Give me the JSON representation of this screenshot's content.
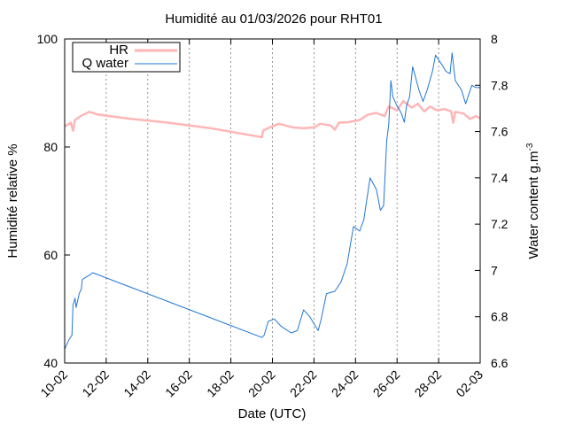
{
  "chart_data": {
    "type": "line",
    "title": "Humidité au 01/03/2026 pour RHT01",
    "xlabel": "Date (UTC)",
    "ylabel_left": "Humidité relative %",
    "ylabel_right": "Water content g.m",
    "ylabel_right_sup": "-3",
    "x_unit": "days since 10-02",
    "xlim": [
      0,
      20
    ],
    "ylim_left": [
      40,
      100
    ],
    "ylim_right": [
      6.6,
      8.0
    ],
    "x_ticks": [
      {
        "x": 0,
        "label": "10-02"
      },
      {
        "x": 2,
        "label": "12-02"
      },
      {
        "x": 4,
        "label": "14-02"
      },
      {
        "x": 6,
        "label": "16-02"
      },
      {
        "x": 8,
        "label": "18-02"
      },
      {
        "x": 10,
        "label": "20-02"
      },
      {
        "x": 12,
        "label": "22-02"
      },
      {
        "x": 14,
        "label": "24-02"
      },
      {
        "x": 16,
        "label": "26-02"
      },
      {
        "x": 18,
        "label": "28-02"
      },
      {
        "x": 20,
        "label": "02-03"
      }
    ],
    "y_ticks_left": [
      40,
      60,
      80,
      100
    ],
    "y_ticks_right": [
      "6.6",
      "6.8",
      "7",
      "7.2",
      "7.4",
      "7.6",
      "7.8",
      "8"
    ],
    "grid": "vertical dashed",
    "legend_position": "top-left",
    "series": [
      {
        "name": "HR",
        "axis": "left",
        "color": "#ffb6b6",
        "points": [
          [
            0,
            83.8
          ],
          [
            0.3,
            84.5
          ],
          [
            0.4,
            83.0
          ],
          [
            0.5,
            85.0
          ],
          [
            0.8,
            85.8
          ],
          [
            1.2,
            86.5
          ],
          [
            1.6,
            86.0
          ],
          [
            3,
            85.3
          ],
          [
            5,
            84.5
          ],
          [
            7,
            83.5
          ],
          [
            9.5,
            81.8
          ],
          [
            9.55,
            83.0
          ],
          [
            9.8,
            83.5
          ],
          [
            10.3,
            84.3
          ],
          [
            10.6,
            84.0
          ],
          [
            11,
            83.6
          ],
          [
            11.5,
            83.5
          ],
          [
            12,
            83.6
          ],
          [
            12.3,
            84.3
          ],
          [
            12.8,
            84.0
          ],
          [
            13,
            83.2
          ],
          [
            13.2,
            84.5
          ],
          [
            13.7,
            84.6
          ],
          [
            14.2,
            85.0
          ],
          [
            14.6,
            86.0
          ],
          [
            15,
            86.3
          ],
          [
            15.4,
            85.7
          ],
          [
            15.6,
            87.5
          ],
          [
            16,
            86.8
          ],
          [
            16.3,
            88.5
          ],
          [
            16.7,
            87.3
          ],
          [
            17,
            88.0
          ],
          [
            17.3,
            86.6
          ],
          [
            17.6,
            87.5
          ],
          [
            17.9,
            86.8
          ],
          [
            18.3,
            87.0
          ],
          [
            18.6,
            86.6
          ],
          [
            18.7,
            84.5
          ],
          [
            18.8,
            86.5
          ],
          [
            19.2,
            86.2
          ],
          [
            19.5,
            85.2
          ],
          [
            19.8,
            85.7
          ],
          [
            20,
            85.3
          ]
        ]
      },
      {
        "name": "Q water",
        "axis": "right",
        "color": "#1f77d4",
        "points": [
          [
            0,
            6.66
          ],
          [
            0.2,
            6.7
          ],
          [
            0.35,
            6.72
          ],
          [
            0.4,
            6.85
          ],
          [
            0.5,
            6.88
          ],
          [
            0.55,
            6.84
          ],
          [
            0.7,
            6.9
          ],
          [
            0.8,
            6.92
          ],
          [
            0.85,
            6.96
          ],
          [
            1.0,
            6.97
          ],
          [
            1.2,
            6.98
          ],
          [
            1.35,
            6.99
          ],
          [
            9.5,
            6.71
          ],
          [
            9.6,
            6.72
          ],
          [
            9.8,
            6.78
          ],
          [
            10.1,
            6.79
          ],
          [
            10.4,
            6.76
          ],
          [
            10.9,
            6.73
          ],
          [
            11.2,
            6.74
          ],
          [
            11.5,
            6.83
          ],
          [
            11.8,
            6.8
          ],
          [
            12.2,
            6.74
          ],
          [
            12.35,
            6.79
          ],
          [
            12.6,
            6.9
          ],
          [
            13.0,
            6.91
          ],
          [
            13.3,
            6.95
          ],
          [
            13.6,
            7.03
          ],
          [
            13.9,
            7.19
          ],
          [
            14.2,
            7.17
          ],
          [
            14.4,
            7.22
          ],
          [
            14.7,
            7.4
          ],
          [
            15.0,
            7.35
          ],
          [
            15.2,
            7.26
          ],
          [
            15.35,
            7.28
          ],
          [
            15.5,
            7.56
          ],
          [
            15.6,
            7.63
          ],
          [
            15.7,
            7.82
          ],
          [
            15.8,
            7.75
          ],
          [
            15.95,
            7.72
          ],
          [
            16.2,
            7.68
          ],
          [
            16.35,
            7.64
          ],
          [
            16.45,
            7.71
          ],
          [
            16.6,
            7.75
          ],
          [
            16.75,
            7.88
          ],
          [
            16.9,
            7.83
          ],
          [
            17.05,
            7.78
          ],
          [
            17.25,
            7.73
          ],
          [
            17.45,
            7.78
          ],
          [
            17.7,
            7.86
          ],
          [
            17.85,
            7.93
          ],
          [
            18.0,
            7.91
          ],
          [
            18.15,
            7.89
          ],
          [
            18.35,
            7.86
          ],
          [
            18.55,
            7.85
          ],
          [
            18.65,
            7.94
          ],
          [
            18.8,
            7.82
          ],
          [
            19.1,
            7.78
          ],
          [
            19.3,
            7.72
          ],
          [
            19.45,
            7.76
          ],
          [
            19.6,
            7.8
          ],
          [
            19.8,
            7.79
          ],
          [
            20.0,
            7.79
          ]
        ]
      }
    ]
  }
}
